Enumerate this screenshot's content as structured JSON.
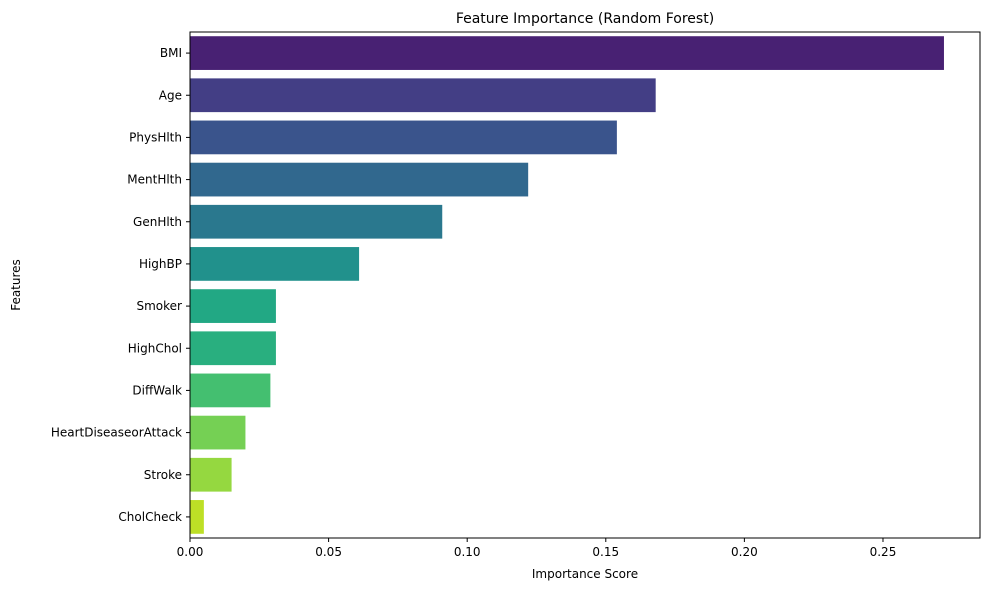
{
  "chart_data": {
    "type": "bar",
    "orientation": "horizontal",
    "title": "Feature Importance (Random Forest)",
    "xlabel": "Importance Score",
    "ylabel": "Features",
    "categories": [
      "BMI",
      "Age",
      "PhysHlth",
      "MentHlth",
      "GenHlth",
      "HighBP",
      "Smoker",
      "HighChol",
      "DiffWalk",
      "HeartDiseaseorAttack",
      "Stroke",
      "CholCheck"
    ],
    "values": [
      0.272,
      0.168,
      0.154,
      0.122,
      0.091,
      0.061,
      0.031,
      0.031,
      0.029,
      0.02,
      0.015,
      0.005
    ],
    "colors": [
      "#482173",
      "#433e85",
      "#3a548c",
      "#31688e",
      "#2a788e",
      "#21918c",
      "#22a884",
      "#29af7f",
      "#44bf70",
      "#75d054",
      "#95d840",
      "#bddf26"
    ],
    "xlim": [
      0,
      0.285
    ],
    "xticks": [
      0.0,
      0.05,
      0.1,
      0.15,
      0.2,
      0.25
    ],
    "xtick_labels": [
      "0.00",
      "0.05",
      "0.10",
      "0.15",
      "0.20",
      "0.25"
    ],
    "grid": false,
    "legend": "none"
  }
}
